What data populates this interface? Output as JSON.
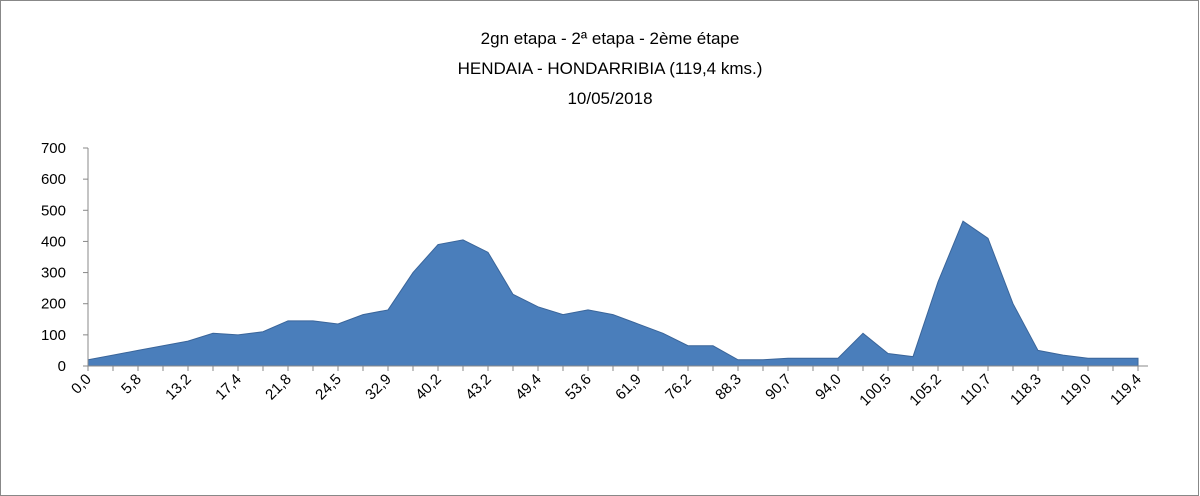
{
  "chart_data": {
    "type": "area",
    "title": [
      "2gn etapa - 2ª etapa - 2ème étape",
      "HENDAIA - HONDARRIBIA (119,4 kms.)",
      "10/05/2018"
    ],
    "categories": [
      "0,0",
      null,
      "5,8",
      null,
      "13,2",
      null,
      "17,4",
      null,
      "21,8",
      null,
      "24,5",
      null,
      "32,9",
      null,
      "40,2",
      null,
      "43,2",
      null,
      "49,4",
      null,
      "53,6",
      null,
      "61,9",
      null,
      "76,2",
      null,
      "88,3",
      null,
      "90,7",
      null,
      "94,0",
      null,
      "100,5",
      null,
      "105,2",
      null,
      "110,7",
      null,
      "118,3",
      null,
      "119,0",
      null,
      "119,4"
    ],
    "values": [
      20,
      35,
      50,
      65,
      80,
      105,
      100,
      110,
      145,
      145,
      135,
      165,
      180,
      300,
      390,
      405,
      365,
      230,
      190,
      165,
      180,
      165,
      135,
      105,
      65,
      65,
      20,
      20,
      25,
      25,
      25,
      105,
      40,
      30,
      270,
      465,
      410,
      200,
      50,
      35,
      25,
      25,
      25
    ],
    "color": "#4a7ebb",
    "ylim": [
      0,
      700
    ],
    "yticks": [
      0,
      100,
      200,
      300,
      400,
      500,
      600,
      700
    ],
    "grid": false
  }
}
